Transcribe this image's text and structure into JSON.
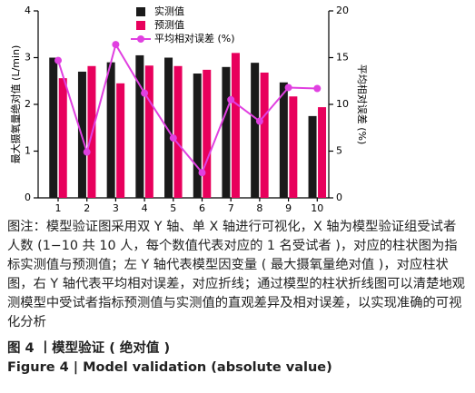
{
  "chart_data": {
    "type": "bar",
    "categories": [
      1,
      2,
      3,
      4,
      5,
      6,
      7,
      8,
      9,
      10
    ],
    "ylabel": "最大摄氧量绝对值 (L/min)",
    "y2label": "平均相对误差 (%)",
    "ylim": [
      0,
      4
    ],
    "yticks": [
      0,
      1,
      2,
      3,
      4
    ],
    "y2lim": [
      0,
      20
    ],
    "y2ticks": [
      0,
      5,
      10,
      15,
      20
    ],
    "grid": false,
    "legend": "upper center",
    "series": [
      {
        "name": "实测值",
        "color": "#1a1a1a",
        "values": [
          3.0,
          2.7,
          2.9,
          3.05,
          3.0,
          2.66,
          2.8,
          2.89,
          2.47,
          1.75
        ]
      },
      {
        "name": "预测值",
        "color": "#e8005c",
        "values": [
          2.56,
          2.82,
          2.45,
          2.83,
          2.82,
          2.74,
          3.1,
          2.68,
          2.17,
          1.94
        ]
      },
      {
        "name": "平均相对误差 (%)",
        "color": "#e040e0",
        "type": "line",
        "axis": "y2",
        "values": [
          14.7,
          4.9,
          16.4,
          11.2,
          6.4,
          2.7,
          10.5,
          8.2,
          11.8,
          11.7
        ]
      }
    ]
  },
  "caption": {
    "text": "图注：模型验证图采用双 Y 轴、单 X 轴进行可视化，X 轴为模型验证组受试者人数 (1−10 共 10 人，每个数值代表对应的 1 名受试者 )，对应的柱状图为指标实测值与预测值；左 Y 轴代表模型因变量 ( 最大摄氧量绝对值 )，对应柱状图，右 Y 轴代表平均相对误差，对应折线；通过模型的柱状折线图可以清楚地观测模型中受试者指标预测值与实测值的直观差异及相对误差，以实现准确的可视化分析",
    "title_cn": "图 4 丨模型验证 ( 绝对值 )",
    "title_en": "Figure 4 | Model validation (absolute value)"
  }
}
